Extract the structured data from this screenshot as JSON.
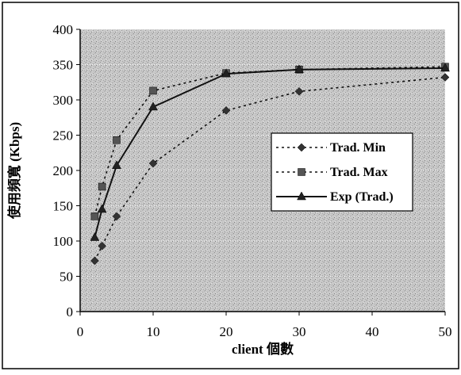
{
  "chart_data": {
    "type": "line",
    "xlabel": "client 個數",
    "ylabel": "使用頻寬 (Kbps)",
    "xlim": [
      0,
      50
    ],
    "ylim": [
      0,
      400
    ],
    "xticks": [
      0,
      10,
      20,
      30,
      40,
      50
    ],
    "yticks": [
      0,
      50,
      100,
      150,
      200,
      250,
      300,
      350,
      400
    ],
    "grid": true,
    "legend_position": "right",
    "series": [
      {
        "name": "Trad. Min",
        "marker": "diamond",
        "style": "dotted",
        "x": [
          2,
          3,
          5,
          10,
          20,
          30,
          50
        ],
        "y": [
          72,
          93,
          135,
          210,
          285,
          312,
          332
        ]
      },
      {
        "name": "Trad. Max",
        "marker": "square",
        "style": "dotted",
        "x": [
          2,
          3,
          5,
          10,
          20,
          30,
          50
        ],
        "y": [
          135,
          177,
          243,
          313,
          338,
          343,
          347
        ]
      },
      {
        "name": "Exp (Trad.)",
        "marker": "triangle",
        "style": "solid",
        "x": [
          2,
          3,
          5,
          10,
          20,
          30,
          50
        ],
        "y": [
          105,
          145,
          207,
          290,
          337,
          343,
          345
        ]
      }
    ]
  }
}
